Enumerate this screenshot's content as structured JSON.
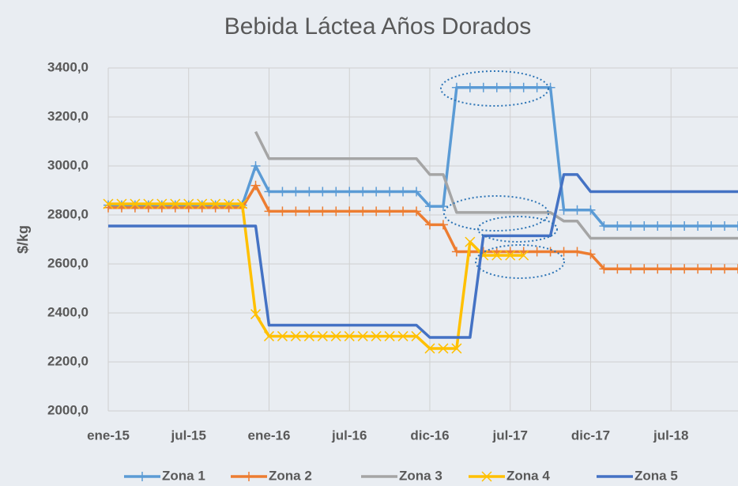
{
  "chart_data": {
    "type": "line",
    "title": "Bebida Láctea Años Dorados",
    "y_label": "$/kg",
    "x": [
      0,
      1,
      2,
      3,
      4,
      5,
      6,
      7,
      8,
      9,
      10,
      11,
      12,
      13,
      14,
      15,
      16,
      17,
      18,
      19,
      20,
      21,
      22,
      23,
      24,
      25,
      26,
      27,
      28,
      29,
      30,
      31,
      32,
      33,
      34,
      35,
      36,
      37,
      38,
      39,
      40,
      41,
      42,
      43,
      44,
      45,
      46,
      47
    ],
    "xlim": [
      0,
      47
    ],
    "xticks": [
      {
        "value": 0,
        "label": "ene-15"
      },
      {
        "value": 6,
        "label": "jul-15"
      },
      {
        "value": 12,
        "label": "ene-16"
      },
      {
        "value": 18,
        "label": "jul-16"
      },
      {
        "value": 24,
        "label": "dic-16"
      },
      {
        "value": 30,
        "label": "jul-17"
      },
      {
        "value": 36,
        "label": "dic-17"
      },
      {
        "value": 42,
        "label": "jul-18"
      }
    ],
    "ylim": [
      2000,
      3400
    ],
    "yticks": [
      {
        "value": 2000,
        "label": "2000,0"
      },
      {
        "value": 2200,
        "label": "2200,0"
      },
      {
        "value": 2400,
        "label": "2400,0"
      },
      {
        "value": 2600,
        "label": "2600,0"
      },
      {
        "value": 2800,
        "label": "2800,0"
      },
      {
        "value": 3000,
        "label": "3000,0"
      },
      {
        "value": 3200,
        "label": "3200,0"
      },
      {
        "value": 3400,
        "label": "3400,0"
      }
    ],
    "grid": true,
    "legend": "bottom",
    "series": [
      {
        "name": "Zona 1",
        "color": "#5b9bd5",
        "marker": "+",
        "values": [
          2840,
          2840,
          2840,
          2840,
          2840,
          2840,
          2840,
          2840,
          2840,
          2840,
          2840,
          3000,
          2895,
          2895,
          2895,
          2895,
          2895,
          2895,
          2895,
          2895,
          2895,
          2895,
          2895,
          2895,
          2835,
          2835,
          3320,
          3320,
          3320,
          3320,
          3320,
          3320,
          3320,
          3320,
          2820,
          2820,
          2820,
          2755,
          2755,
          2755,
          2755,
          2755,
          2755,
          2755,
          2755,
          2755,
          2755,
          2755
        ]
      },
      {
        "name": "Zona 2",
        "color": "#ed7d31",
        "marker": "+",
        "values": [
          2830,
          2830,
          2830,
          2830,
          2830,
          2830,
          2830,
          2830,
          2830,
          2830,
          2830,
          2920,
          2815,
          2815,
          2815,
          2815,
          2815,
          2815,
          2815,
          2815,
          2815,
          2815,
          2815,
          2815,
          2760,
          2760,
          2650,
          2650,
          2650,
          2650,
          2650,
          2650,
          2650,
          2650,
          2650,
          2650,
          2640,
          2580,
          2580,
          2580,
          2580,
          2580,
          2580,
          2580,
          2580,
          2580,
          2580,
          2580
        ]
      },
      {
        "name": "Zona 3",
        "color": "#a5a5a5",
        "marker": "none",
        "values": [
          null,
          null,
          null,
          null,
          null,
          null,
          null,
          null,
          null,
          null,
          null,
          3140,
          3030,
          3030,
          3030,
          3030,
          3030,
          3030,
          3030,
          3030,
          3030,
          3030,
          3030,
          3030,
          2965,
          2965,
          2810,
          2810,
          2810,
          2810,
          2810,
          2810,
          2810,
          2810,
          2775,
          2775,
          2705,
          2705,
          2705,
          2705,
          2705,
          2705,
          2705,
          2705,
          2705,
          2705,
          2705,
          2705
        ]
      },
      {
        "name": "Zona 4",
        "color": "#ffc000",
        "marker": "x",
        "values": [
          2845,
          2845,
          2845,
          2845,
          2845,
          2845,
          2845,
          2845,
          2845,
          2845,
          2845,
          2395,
          2305,
          2305,
          2305,
          2305,
          2305,
          2305,
          2305,
          2305,
          2305,
          2305,
          2305,
          2305,
          2255,
          2255,
          2255,
          2690,
          2635,
          2635,
          2635,
          2635,
          null,
          null,
          null,
          null,
          null,
          null,
          null,
          null,
          null,
          null,
          null,
          null,
          null,
          null,
          null,
          null
        ]
      },
      {
        "name": "Zona 5",
        "color": "#4472c4",
        "marker": "none",
        "values": [
          2755,
          2755,
          2755,
          2755,
          2755,
          2755,
          2755,
          2755,
          2755,
          2755,
          2755,
          2755,
          2350,
          2350,
          2350,
          2350,
          2350,
          2350,
          2350,
          2350,
          2350,
          2350,
          2350,
          2350,
          2300,
          2300,
          2300,
          2300,
          2715,
          2715,
          2715,
          2715,
          2715,
          2715,
          2965,
          2965,
          2895,
          2895,
          2895,
          2895,
          2895,
          2895,
          2895,
          2895,
          2895,
          2895,
          2895,
          2895
        ]
      }
    ]
  }
}
